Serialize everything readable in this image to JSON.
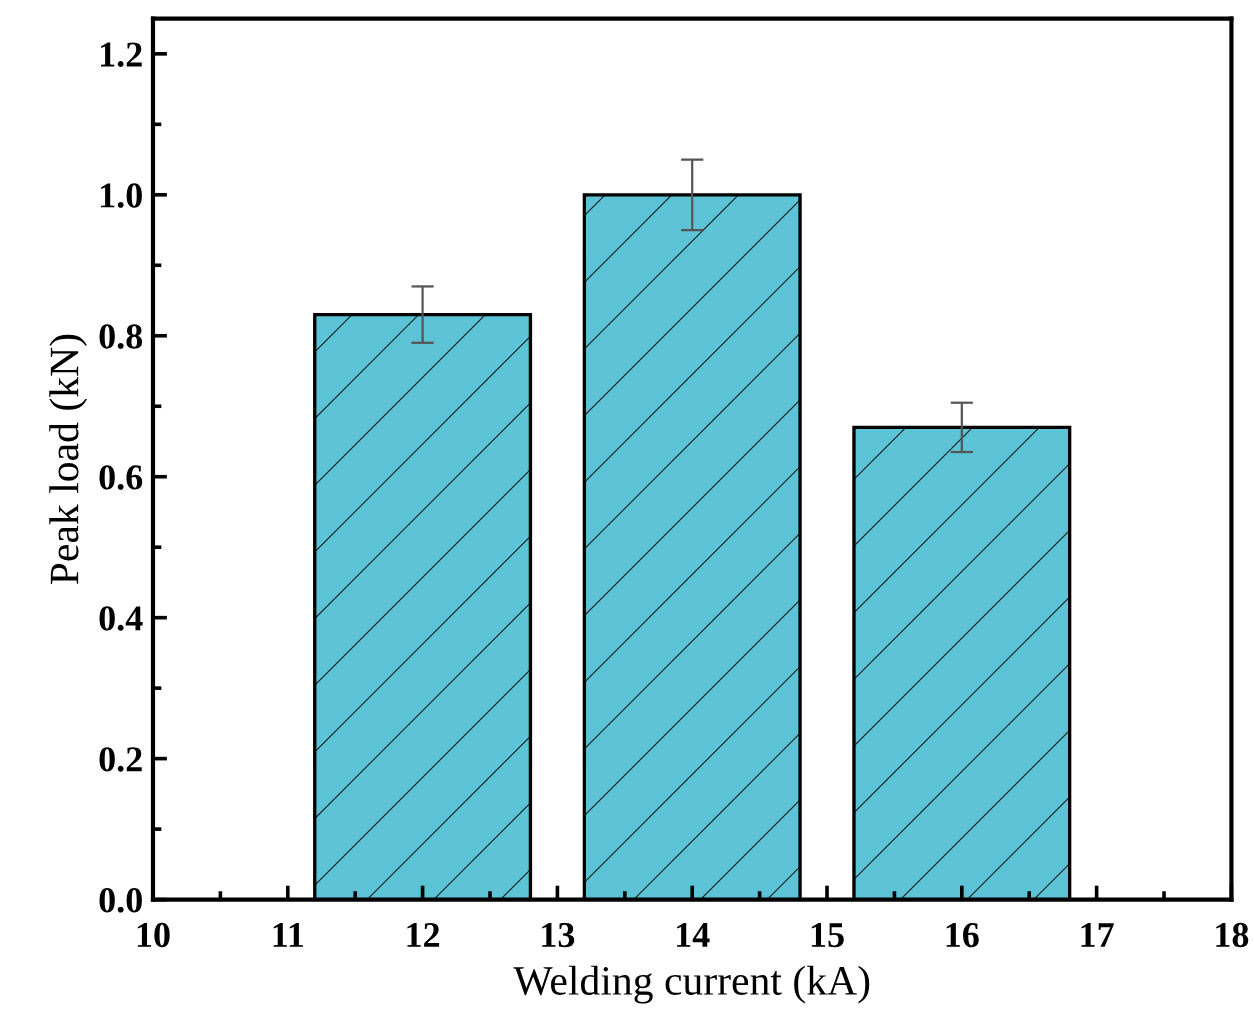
{
  "chart_data": {
    "type": "bar",
    "xlabel": "Welding current (kA)",
    "ylabel": "Peak load (kN)",
    "x": [
      12,
      14,
      16
    ],
    "values": [
      0.83,
      1.0,
      0.67
    ],
    "errors": [
      0.04,
      0.05,
      0.035
    ],
    "color": "#5bc3d5",
    "xlim": [
      10,
      18
    ],
    "xticks": [
      10,
      11,
      12,
      13,
      14,
      15,
      16,
      17,
      18
    ],
    "ylim": [
      0,
      1.25
    ],
    "yticks": [
      {
        "value": 0.0,
        "label": "0.0"
      },
      0.2,
      0.4,
      0.6,
      0.8,
      {
        "value": 1.0,
        "label": "1.0"
      },
      1.2
    ],
    "grid": false
  }
}
